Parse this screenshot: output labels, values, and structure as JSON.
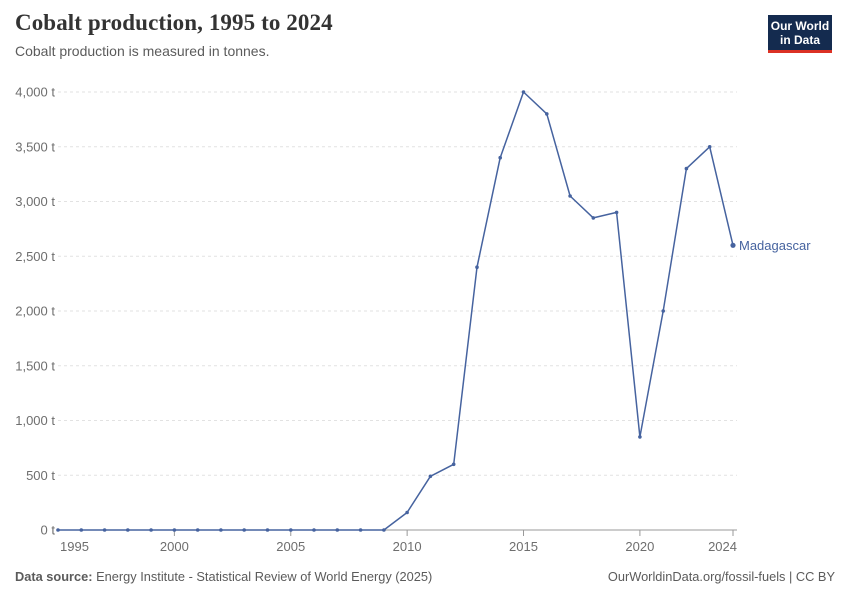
{
  "header": {
    "title": "Cobalt production, 1995 to 2024",
    "subtitle": "Cobalt production is measured in tonnes.",
    "logo": {
      "line1": "Our World",
      "line2": "in Data"
    }
  },
  "chart_data": {
    "type": "line",
    "title": "Cobalt production, 1995 to 2024",
    "ylabel": "",
    "unit": "t",
    "x": [
      1995,
      1996,
      1997,
      1998,
      1999,
      2000,
      2001,
      2002,
      2003,
      2004,
      2005,
      2006,
      2007,
      2008,
      2009,
      2010,
      2011,
      2012,
      2013,
      2014,
      2015,
      2016,
      2017,
      2018,
      2019,
      2020,
      2021,
      2022,
      2023,
      2024
    ],
    "series": [
      {
        "name": "Madagascar",
        "color": "#46639F",
        "values": [
          0,
          0,
          0,
          0,
          0,
          0,
          0,
          0,
          0,
          0,
          0,
          0,
          0,
          0,
          0,
          160,
          490,
          600,
          2400,
          3400,
          4000,
          3800,
          3050,
          2850,
          2900,
          850,
          2000,
          3300,
          3500,
          2600
        ]
      }
    ],
    "ylim": [
      0,
      4000
    ],
    "yticks": [
      0,
      500,
      1000,
      1500,
      2000,
      2500,
      3000,
      3500,
      4000
    ],
    "xticks": [
      1995,
      2000,
      2005,
      2010,
      2015,
      2020,
      2024
    ],
    "grid": "horizontal-dashed",
    "legend": "end-of-line-label"
  },
  "footer": {
    "source_label": "Data source:",
    "source_text": "Energy Institute - Statistical Review of World Energy (2025)",
    "credits": "OurWorldinData.org/fossil-fuels | CC BY"
  },
  "colors": {
    "line": "#46639F",
    "logo_bg": "#142B4F",
    "logo_bar": "#DB3124",
    "grid": "#E2E2E2",
    "axis": "#999999",
    "tick_text": "#6E6E6E"
  }
}
